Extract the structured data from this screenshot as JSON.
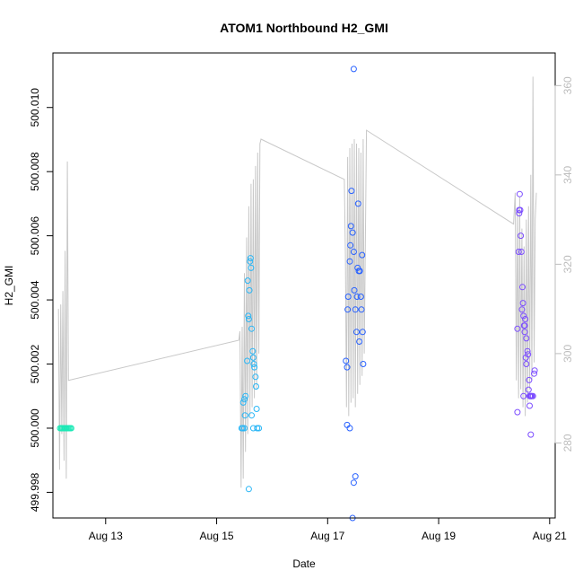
{
  "chart_data": {
    "type": "scatter",
    "title": "ATOM1 Northbound H2_GMI",
    "xlabel": "Date",
    "ylabel": "H2_GMI",
    "x_ticks": [
      {
        "label": "Aug 13",
        "day": 13
      },
      {
        "label": "Aug 15",
        "day": 15
      },
      {
        "label": "Aug 17",
        "day": 17
      },
      {
        "label": "Aug 19",
        "day": 19
      },
      {
        "label": "Aug 21",
        "day": 21
      }
    ],
    "xlim": [
      12.05,
      21.1
    ],
    "ylim": [
      499.9972,
      500.0117
    ],
    "y_ticks": [
      "499.998",
      "500.000",
      "500.002",
      "500.004",
      "500.006",
      "500.008",
      "500.010"
    ],
    "y2_ticks": [
      "280",
      "300",
      "320",
      "340",
      "360"
    ],
    "y2lim": [
      263.2,
      367.3
    ],
    "grid": false,
    "legend": "none",
    "line_color": "#c8c8c8",
    "series": [
      {
        "color": "#1de9b6",
        "points": [
          [
            12.18,
            500.0
          ],
          [
            12.2,
            500.0
          ],
          [
            12.22,
            500.0
          ],
          [
            12.24,
            500.0
          ],
          [
            12.26,
            500.0
          ],
          [
            12.28,
            500.0
          ],
          [
            12.3,
            500.0
          ],
          [
            12.32,
            500.0
          ],
          [
            12.34,
            500.0
          ],
          [
            12.36,
            500.0
          ],
          [
            12.38,
            500.0
          ]
        ]
      },
      {
        "color": "#29b6f6",
        "points": [
          [
            15.45,
            500.0
          ],
          [
            15.47,
            500.0
          ],
          [
            15.5,
            500.0
          ],
          [
            15.48,
            500.0008
          ],
          [
            15.5,
            500.0009
          ],
          [
            15.52,
            500.001
          ],
          [
            15.51,
            500.0004
          ],
          [
            15.55,
            500.0021
          ],
          [
            15.56,
            500.0046
          ],
          [
            15.57,
            500.0035
          ],
          [
            15.58,
            500.0034
          ],
          [
            15.59,
            500.0043
          ],
          [
            15.6,
            500.0052
          ],
          [
            15.61,
            500.0053
          ],
          [
            15.62,
            500.005
          ],
          [
            15.63,
            500.0031
          ],
          [
            15.65,
            500.0024
          ],
          [
            15.66,
            500.0022
          ],
          [
            15.67,
            500.002
          ],
          [
            15.68,
            500.0019
          ],
          [
            15.7,
            500.0016
          ],
          [
            15.71,
            500.0013
          ],
          [
            15.72,
            500.0006
          ],
          [
            15.66,
            500.0
          ],
          [
            15.73,
            500.0
          ],
          [
            15.76,
            500.0
          ],
          [
            15.58,
            499.9981
          ],
          [
            15.63,
            500.0004
          ]
        ]
      },
      {
        "color": "#2962ff",
        "points": [
          [
            17.33,
            500.0021
          ],
          [
            17.35,
            500.0019
          ],
          [
            17.36,
            500.0037
          ],
          [
            17.37,
            500.0041
          ],
          [
            17.4,
            500.0052
          ],
          [
            17.41,
            500.0057
          ],
          [
            17.42,
            500.0063
          ],
          [
            17.43,
            500.0074
          ],
          [
            17.45,
            500.0061
          ],
          [
            17.47,
            500.0055
          ],
          [
            17.48,
            500.0043
          ],
          [
            17.5,
            500.0037
          ],
          [
            17.52,
            500.003
          ],
          [
            17.54,
            500.005
          ],
          [
            17.55,
            500.007
          ],
          [
            17.56,
            500.0049
          ],
          [
            17.58,
            500.0049
          ],
          [
            17.6,
            500.0041
          ],
          [
            17.61,
            500.0037
          ],
          [
            17.62,
            500.0054
          ],
          [
            17.63,
            500.003
          ],
          [
            17.35,
            500.0001
          ],
          [
            17.4,
            500.0
          ],
          [
            17.47,
            499.9983
          ],
          [
            17.5,
            499.9985
          ],
          [
            17.45,
            499.9972
          ],
          [
            17.47,
            500.0112
          ],
          [
            17.64,
            500.002
          ],
          [
            17.57,
            500.0027
          ],
          [
            17.53,
            500.0041
          ]
        ]
      },
      {
        "color": "#7c4dff",
        "points": [
          [
            20.42,
            500.0031
          ],
          [
            20.44,
            500.0055
          ],
          [
            20.45,
            500.0068
          ],
          [
            20.46,
            500.0073
          ],
          [
            20.47,
            500.0068
          ],
          [
            20.48,
            500.006
          ],
          [
            20.49,
            500.0055
          ],
          [
            20.5,
            500.0037
          ],
          [
            20.51,
            500.0044
          ],
          [
            20.52,
            500.0039
          ],
          [
            20.53,
            500.0035
          ],
          [
            20.54,
            500.0032
          ],
          [
            20.55,
            500.003
          ],
          [
            20.56,
            500.0034
          ],
          [
            20.57,
            500.0022
          ],
          [
            20.58,
            500.002
          ],
          [
            20.6,
            500.0024
          ],
          [
            20.61,
            500.0023
          ],
          [
            20.62,
            500.0012
          ],
          [
            20.63,
            500.0015
          ],
          [
            20.64,
            500.001
          ],
          [
            20.65,
            500.001
          ],
          [
            20.66,
            500.001
          ],
          [
            20.67,
            500.001
          ],
          [
            20.68,
            500.001
          ],
          [
            20.7,
            500.001
          ],
          [
            20.72,
            500.0017
          ],
          [
            20.73,
            500.0018
          ],
          [
            20.42,
            500.0005
          ],
          [
            20.53,
            500.001
          ],
          [
            20.58,
            500.0028
          ],
          [
            20.64,
            500.0007
          ],
          [
            20.66,
            499.9998
          ],
          [
            20.45,
            500.0067
          ],
          [
            20.55,
            500.0032
          ]
        ]
      }
    ],
    "secondary_line": [
      [
        12.15,
        310
      ],
      [
        12.17,
        274
      ],
      [
        12.19,
        311
      ],
      [
        12.21,
        282
      ],
      [
        12.23,
        314
      ],
      [
        12.25,
        276
      ],
      [
        12.27,
        323
      ],
      [
        12.29,
        272
      ],
      [
        12.31,
        343
      ],
      [
        12.33,
        294
      ],
      [
        15.4,
        303
      ],
      [
        15.42,
        305
      ],
      [
        15.44,
        270
      ],
      [
        15.46,
        306
      ],
      [
        15.48,
        272
      ],
      [
        15.5,
        318
      ],
      [
        15.52,
        278
      ],
      [
        15.54,
        326
      ],
      [
        15.56,
        282
      ],
      [
        15.58,
        333
      ],
      [
        15.6,
        286
      ],
      [
        15.62,
        338
      ],
      [
        15.64,
        288
      ],
      [
        15.66,
        339
      ],
      [
        15.68,
        290
      ],
      [
        15.7,
        342
      ],
      [
        15.72,
        292
      ],
      [
        15.74,
        345
      ],
      [
        15.76,
        300
      ],
      [
        15.78,
        347
      ],
      [
        15.8,
        348
      ],
      [
        17.3,
        339
      ],
      [
        17.32,
        322
      ],
      [
        17.34,
        288
      ],
      [
        17.36,
        344
      ],
      [
        17.38,
        286
      ],
      [
        17.4,
        346
      ],
      [
        17.42,
        289
      ],
      [
        17.44,
        347
      ],
      [
        17.46,
        290
      ],
      [
        17.48,
        348
      ],
      [
        17.5,
        288
      ],
      [
        17.52,
        347
      ],
      [
        17.54,
        291
      ],
      [
        17.56,
        346
      ],
      [
        17.58,
        293
      ],
      [
        17.6,
        345
      ],
      [
        17.62,
        295
      ],
      [
        17.64,
        348
      ],
      [
        17.66,
        300
      ],
      [
        17.7,
        350
      ],
      [
        20.35,
        329
      ],
      [
        20.38,
        336
      ],
      [
        20.4,
        294
      ],
      [
        20.42,
        332
      ],
      [
        20.44,
        290
      ],
      [
        20.46,
        335
      ],
      [
        20.48,
        292
      ],
      [
        20.5,
        328
      ],
      [
        20.52,
        288
      ],
      [
        20.54,
        324
      ],
      [
        20.56,
        286
      ],
      [
        20.58,
        330
      ],
      [
        20.6,
        289
      ],
      [
        20.62,
        333
      ],
      [
        20.64,
        292
      ],
      [
        20.66,
        340
      ],
      [
        20.68,
        294
      ],
      [
        20.7,
        362
      ],
      [
        20.72,
        298
      ],
      [
        20.74,
        330
      ],
      [
        20.76,
        336
      ]
    ]
  }
}
